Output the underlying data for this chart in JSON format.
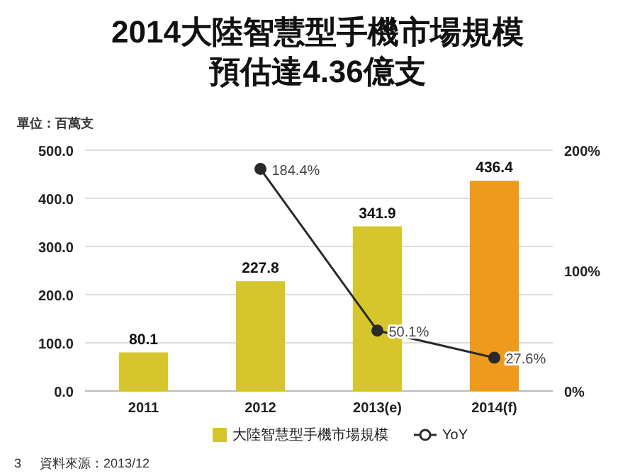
{
  "chart_data": {
    "type": "bar",
    "title": "2014大陸智慧型手機市場規模",
    "subtitle": "預估達4.36億支",
    "ylabel": "單位：百萬支",
    "categories": [
      "2011",
      "2012",
      "2013(e)",
      "2014(f)"
    ],
    "series": [
      {
        "name": "大陸智慧型手機市場規模",
        "color": "#d6c62c",
        "colors": [
          "#d6c62c",
          "#d6c62c",
          "#d6c62c",
          "#ee9a1c"
        ],
        "values": [
          80.1,
          227.8,
          341.9,
          436.4
        ],
        "value_labels": [
          "80.1",
          "227.8",
          "341.9",
          "436.4"
        ]
      },
      {
        "name": "YoY",
        "type": "line",
        "axis": "y2",
        "color": "#2a2a2a",
        "marker": "circle",
        "values": [
          null,
          184.4,
          50.1,
          27.6
        ],
        "value_labels": [
          null,
          "184.4%",
          "50.1%",
          "27.6%"
        ]
      }
    ],
    "ylim": [
      0,
      500
    ],
    "yticks": [
      {
        "value": 0,
        "label": "0.0"
      },
      {
        "value": 100,
        "label": "100.0"
      },
      {
        "value": 200,
        "label": "200.0"
      },
      {
        "value": 300,
        "label": "300.0"
      },
      {
        "value": 400,
        "label": "400.0"
      },
      {
        "value": 500,
        "label": "500.0"
      }
    ],
    "y2lim": [
      0,
      200
    ],
    "y2ticks": [
      {
        "value": 0,
        "label": "0%"
      },
      {
        "value": 100,
        "label": "100%"
      },
      {
        "value": 200,
        "label": "200%"
      }
    ],
    "grid": "y",
    "legend": "bottom",
    "annotations": [
      "3",
      "資料來源：2013/12"
    ]
  }
}
